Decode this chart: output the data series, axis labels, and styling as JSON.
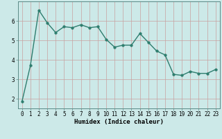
{
  "x": [
    0,
    1,
    2,
    3,
    4,
    5,
    6,
    7,
    8,
    9,
    10,
    11,
    12,
    13,
    14,
    15,
    16,
    17,
    18,
    19,
    20,
    21,
    22,
    23
  ],
  "y": [
    1.85,
    3.7,
    6.55,
    5.9,
    5.4,
    5.7,
    5.65,
    5.8,
    5.65,
    5.7,
    5.05,
    4.65,
    4.75,
    4.75,
    5.35,
    4.9,
    4.45,
    4.25,
    3.25,
    3.2,
    3.4,
    3.3,
    3.3,
    3.5
  ],
  "line_color": "#2e7d6e",
  "marker_color": "#2e7d6e",
  "bg_color": "#cce9e8",
  "grid_color": "#c8a0a0",
  "xlabel": "Humidex (Indice chaleur)",
  "ylim": [
    1.5,
    7.0
  ],
  "xlim": [
    -0.5,
    23.5
  ],
  "yticks": [
    2,
    3,
    4,
    5,
    6
  ],
  "xticks": [
    0,
    1,
    2,
    3,
    4,
    5,
    6,
    7,
    8,
    9,
    10,
    11,
    12,
    13,
    14,
    15,
    16,
    17,
    18,
    19,
    20,
    21,
    22,
    23
  ],
  "tick_fontsize": 5.5,
  "label_fontsize": 6.5,
  "line_width": 1.0,
  "marker_size": 2.5
}
